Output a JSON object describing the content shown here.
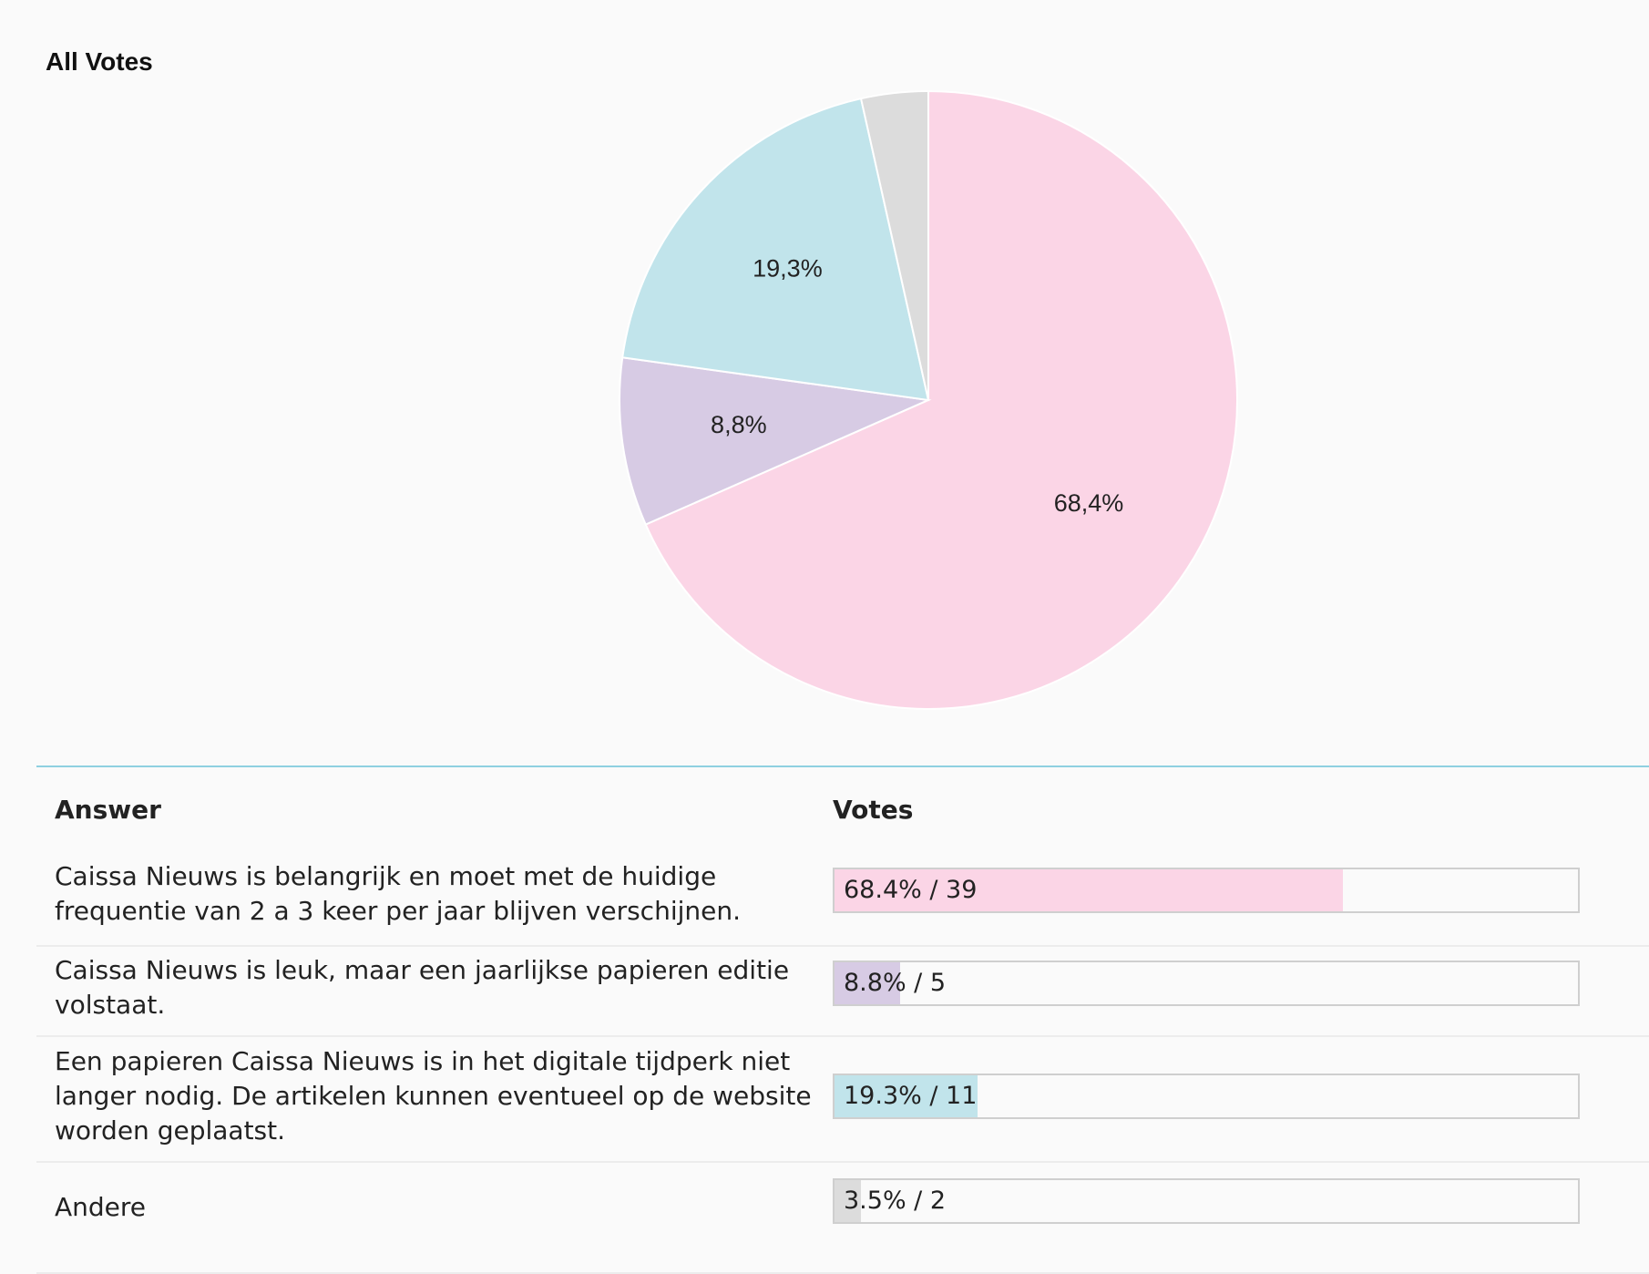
{
  "chart_data": {
    "type": "pie",
    "title": "All Votes",
    "slices": [
      {
        "label": "Caissa Nieuws is belangrijk en moet met de huidige frequentie van 2 a 3 keer per jaar blijven verschijnen.",
        "value": 68.4,
        "pie_label": "68,4%",
        "color": "#fbd5e6"
      },
      {
        "label": "Caissa Nieuws is leuk, maar een jaarlijkse papieren editie volstaat.",
        "value": 8.8,
        "pie_label": "8,8%",
        "color": "#d7cbe4"
      },
      {
        "label": "Een papieren Caissa Nieuws is in het digitale tijdperk niet langer nodig. De artikelen kunnen eventueel op de website worden geplaatst.",
        "value": 19.3,
        "pie_label": "19,3%",
        "color": "#c1e4eb"
      },
      {
        "label": "Andere",
        "value": 3.5,
        "pie_label": "",
        "color": "#dcdcdc"
      }
    ]
  },
  "results": {
    "header_answer": "Answer",
    "header_votes": "Votes",
    "rows": [
      {
        "answer": "Caissa Nieuws is belangrijk en moet met de huidige frequentie van 2 a 3 keer per jaar blijven verschijnen.",
        "percent": 68.4,
        "votes_label": "68.4% / 39",
        "color": "#fbd5e6"
      },
      {
        "answer": "Caissa Nieuws is leuk, maar een jaarlijkse papieren editie volstaat.",
        "percent": 8.8,
        "votes_label": "8.8% / 5",
        "color": "#d7cbe4"
      },
      {
        "answer": "Een papieren Caissa Nieuws is in het digitale tijdperk niet langer nodig. De artikelen kunnen eventueel op de website worden geplaatst.",
        "percent": 19.3,
        "votes_label": "19.3% / 11",
        "color": "#c1e4eb"
      },
      {
        "answer": "Andere",
        "percent": 3.5,
        "votes_label": "3.5% / 2",
        "color": "#dcdcdc"
      }
    ]
  }
}
